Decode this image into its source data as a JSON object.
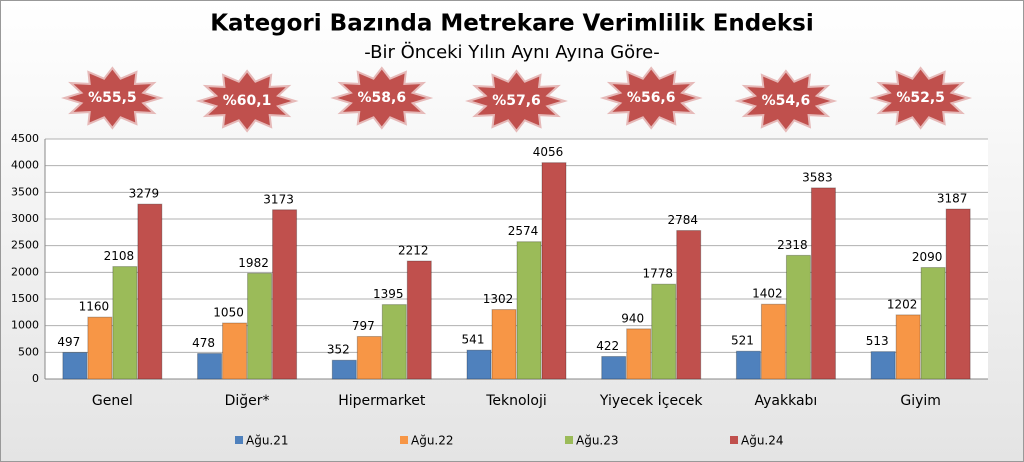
{
  "chart_data": {
    "type": "bar",
    "title": "Kategori Bazında Metrekare Verimlilik Endeksi",
    "subtitle": "-Bir Önceki Yılın Aynı Ayına Göre-",
    "categories": [
      "Genel",
      "Diğer*",
      "Hipermarket",
      "Teknoloji",
      "Yiyecek İçecek",
      "Ayakkabı",
      "Giyim"
    ],
    "annotations": [
      "%55,5",
      "%60,1",
      "%58,6",
      "%57,6",
      "%56,6",
      "%54,6",
      "%52,5"
    ],
    "series": [
      {
        "name": "Ağu.21",
        "color": "#4f81bd",
        "values": [
          497,
          478,
          352,
          541,
          422,
          521,
          513
        ]
      },
      {
        "name": "Ağu.22",
        "color": "#f79646",
        "values": [
          1160,
          1050,
          797,
          1302,
          940,
          1402,
          1202
        ]
      },
      {
        "name": "Ağu.23",
        "color": "#9bbb59",
        "values": [
          2108,
          1982,
          1395,
          2574,
          1778,
          2318,
          2090
        ]
      },
      {
        "name": "Ağu.24",
        "color": "#c0504d",
        "values": [
          3279,
          3173,
          2212,
          4056,
          2784,
          3583,
          3187
        ]
      }
    ],
    "ylim": [
      0,
      4500
    ],
    "yticks": [
      0,
      500,
      1000,
      1500,
      2000,
      2500,
      3000,
      3500,
      4000,
      4500
    ],
    "grid": true,
    "annotation_color": "#c0504d"
  }
}
